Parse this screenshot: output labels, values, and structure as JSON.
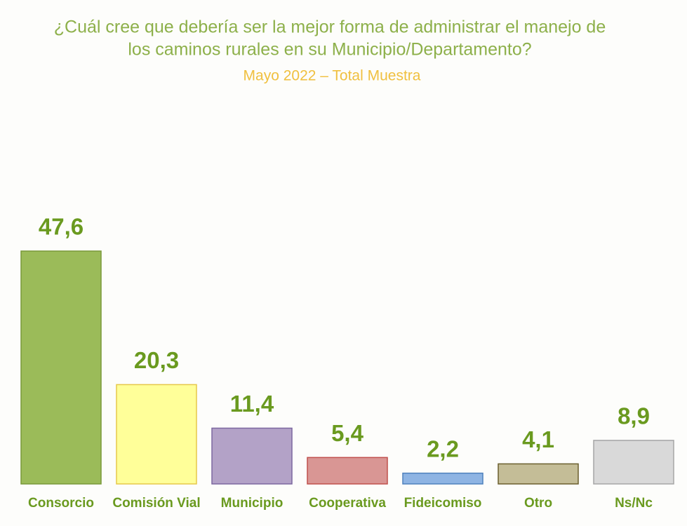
{
  "chart_data": {
    "type": "bar",
    "title": [
      "¿Cuál cree que debería ser la mejor forma de administrar el manejo de",
      "los caminos rurales en su Municipio/Departamento?"
    ],
    "subtitle": "Mayo 2022 – Total Muestra",
    "categories": [
      "Consorcio",
      "Comisión Vial",
      "Municipio",
      "Cooperativa",
      "Fideicomiso",
      "Otro",
      "Ns/Nc"
    ],
    "values": [
      47.6,
      20.3,
      11.4,
      5.4,
      2.2,
      4.1,
      8.9
    ],
    "value_labels": [
      "47,6",
      "20,3",
      "11,4",
      "5,4",
      "2,2",
      "4,1",
      "8,9"
    ],
    "colors": [
      "#9bbb59",
      "#ffff99",
      "#b3a2c7",
      "#d99694",
      "#8eb4e3",
      "#c4bd97",
      "#d9d9d9"
    ],
    "edge_colors": [
      "#7a9a3a",
      "#e6c84a",
      "#7d68a0",
      "#c0504d",
      "#4f81bd",
      "#6b5f2e",
      "#a6a6a6"
    ]
  }
}
